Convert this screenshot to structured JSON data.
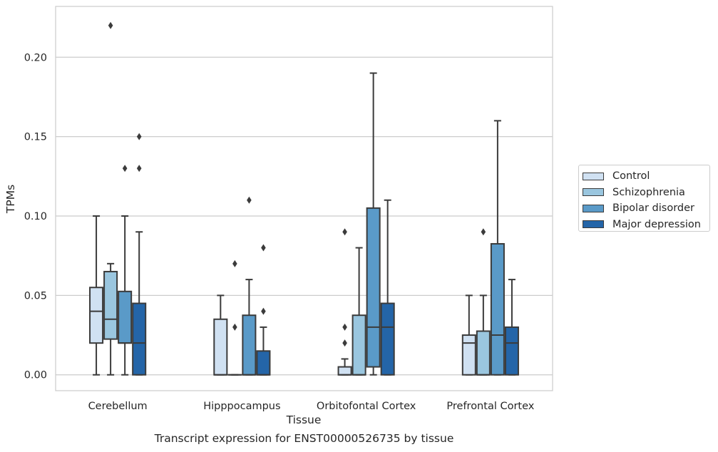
{
  "chart_data": {
    "type": "box",
    "title": "",
    "xlabel": "Tissue",
    "ylabel": "TPMs",
    "caption": "Transcript expression for ENST00000526735 by tissue",
    "ylim": [
      -0.01,
      0.232
    ],
    "yticks": [
      "0.00",
      "0.05",
      "0.10",
      "0.15",
      "0.20"
    ],
    "grid": true,
    "legend_position": "right",
    "categories": [
      "Cerebellum",
      "Hipppocampus",
      "Orbitofontal Cortex",
      "Prefrontal Cortex"
    ],
    "series": [
      {
        "name": "Control",
        "color": "#d0e1f2",
        "boxes": [
          {
            "min": 0.0,
            "q1": 0.02,
            "median": 0.04,
            "q3": 0.055,
            "max": 0.1,
            "outliers": []
          },
          {
            "min": 0.0,
            "q1": 0.0,
            "median": 0.0,
            "q3": 0.035,
            "max": 0.05,
            "outliers": []
          },
          {
            "min": 0.0,
            "q1": 0.0,
            "median": 0.0,
            "q3": 0.005,
            "max": 0.01,
            "outliers": [
              0.02,
              0.03,
              0.09
            ]
          },
          {
            "min": 0.0,
            "q1": 0.0,
            "median": 0.02,
            "q3": 0.025,
            "max": 0.05,
            "outliers": []
          }
        ]
      },
      {
        "name": "Schizophrenia",
        "color": "#9ac6df",
        "boxes": [
          {
            "min": 0.0,
            "q1": 0.0225,
            "median": 0.035,
            "q3": 0.065,
            "max": 0.07,
            "outliers": [
              0.22
            ]
          },
          {
            "min": 0.0,
            "q1": 0.0,
            "median": 0.0,
            "q3": 0.0,
            "max": 0.0,
            "outliers": [
              0.03,
              0.07
            ]
          },
          {
            "min": 0.0,
            "q1": 0.0,
            "median": 0.0,
            "q3": 0.0375,
            "max": 0.08,
            "outliers": []
          },
          {
            "min": 0.0,
            "q1": 0.0,
            "median": 0.0,
            "q3": 0.0275,
            "max": 0.05,
            "outliers": [
              0.09
            ]
          }
        ]
      },
      {
        "name": "Bipolar disorder",
        "color": "#5a9ac8",
        "boxes": [
          {
            "min": 0.0,
            "q1": 0.02,
            "median": 0.02,
            "q3": 0.0525,
            "max": 0.1,
            "outliers": [
              0.13
            ]
          },
          {
            "min": 0.0,
            "q1": 0.0,
            "median": 0.0,
            "q3": 0.0375,
            "max": 0.06,
            "outliers": [
              0.11
            ]
          },
          {
            "min": 0.0,
            "q1": 0.005,
            "median": 0.03,
            "q3": 0.105,
            "max": 0.19,
            "outliers": []
          },
          {
            "min": 0.0,
            "q1": 0.0,
            "median": 0.025,
            "q3": 0.0825,
            "max": 0.16,
            "outliers": []
          }
        ]
      },
      {
        "name": "Major depression",
        "color": "#2465a8",
        "boxes": [
          {
            "min": 0.0,
            "q1": 0.0,
            "median": 0.02,
            "q3": 0.045,
            "max": 0.09,
            "outliers": [
              0.13,
              0.15
            ]
          },
          {
            "min": 0.0,
            "q1": 0.0,
            "median": 0.0,
            "q3": 0.015,
            "max": 0.03,
            "outliers": [
              0.04,
              0.08
            ]
          },
          {
            "min": 0.0,
            "q1": 0.0,
            "median": 0.03,
            "q3": 0.045,
            "max": 0.11,
            "outliers": []
          },
          {
            "min": 0.0,
            "q1": 0.0,
            "median": 0.02,
            "q3": 0.03,
            "max": 0.06,
            "outliers": []
          }
        ]
      }
    ]
  }
}
